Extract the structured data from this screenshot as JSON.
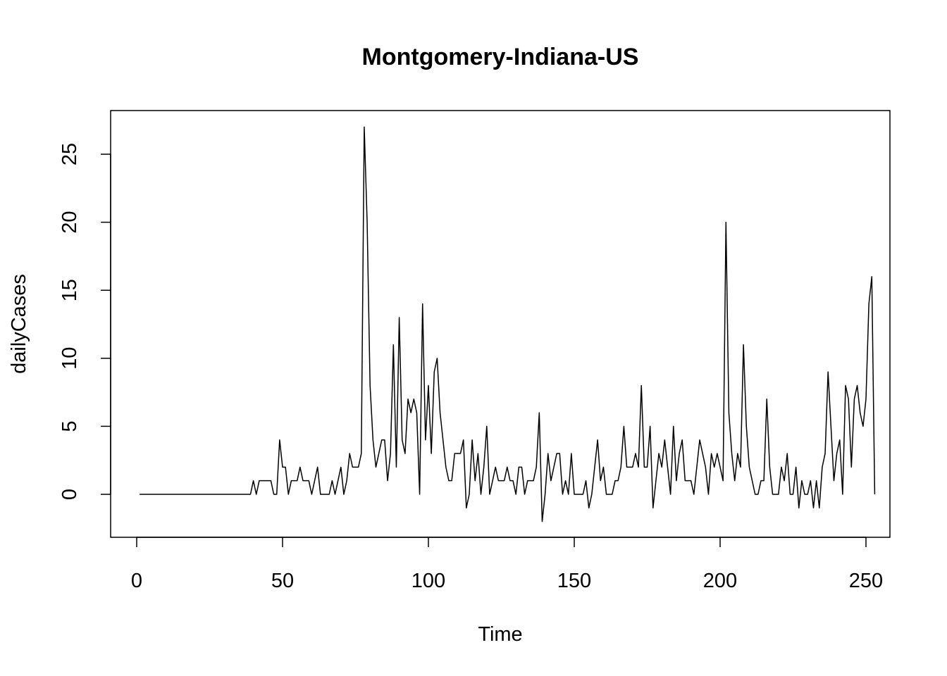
{
  "chart_data": {
    "type": "line",
    "title": "Montgomery-Indiana-US",
    "xlabel": "Time",
    "ylabel": "dailyCases",
    "xlim": [
      1,
      248
    ],
    "ylim": [
      -2,
      27
    ],
    "xticks": [
      0,
      50,
      100,
      150,
      200,
      250
    ],
    "yticks": [
      0,
      5,
      10,
      15,
      20,
      25
    ],
    "grid": false,
    "line_color": "#000000",
    "series": [
      {
        "x_start": 1,
        "values": [
          0,
          0,
          0,
          0,
          0,
          0,
          0,
          0,
          0,
          0,
          0,
          0,
          0,
          0,
          0,
          0,
          0,
          0,
          0,
          0,
          0,
          0,
          0,
          0,
          0,
          0,
          0,
          0,
          0,
          0,
          0,
          0,
          0,
          0,
          0,
          0,
          0,
          0,
          0,
          1,
          0,
          1,
          1,
          1,
          1,
          1,
          0,
          0,
          4,
          2,
          2,
          0,
          1,
          1,
          1,
          2,
          1,
          1,
          1,
          0,
          1,
          2,
          0,
          0,
          0,
          0,
          1,
          0,
          1,
          2,
          0,
          1,
          3,
          2,
          2,
          2,
          3,
          27,
          20,
          8,
          4,
          2,
          3,
          4,
          4,
          1,
          3,
          11,
          2,
          13,
          4,
          3,
          7,
          6,
          7,
          6,
          0,
          14,
          4,
          8,
          3,
          9,
          10,
          6,
          4,
          2,
          1,
          1,
          3,
          3,
          3,
          4,
          -1,
          0,
          4,
          1,
          3,
          0,
          2,
          5,
          0,
          1,
          2,
          1,
          1,
          1,
          2,
          1,
          1,
          0,
          2,
          2,
          0,
          1,
          1,
          1,
          2,
          6,
          -2,
          0,
          3,
          1,
          2,
          3,
          3,
          0,
          1,
          0,
          3,
          0,
          0,
          0,
          0,
          1,
          -1,
          0,
          2,
          4,
          1,
          2,
          0,
          0,
          0,
          1,
          1,
          2,
          5,
          2,
          2,
          2,
          3,
          2,
          8,
          2,
          2,
          5,
          -1,
          1,
          3,
          2,
          4,
          2,
          0,
          5,
          1,
          3,
          4,
          1,
          1,
          1,
          0,
          2,
          4,
          3,
          2,
          0,
          3,
          2,
          3,
          2,
          1,
          20,
          6,
          3,
          1,
          3,
          2,
          11,
          5,
          2,
          1,
          0,
          0,
          1,
          1,
          7,
          2,
          0,
          0,
          0,
          2,
          1,
          3,
          0,
          0,
          2,
          -1,
          1,
          0,
          0,
          1,
          -1,
          1,
          -1,
          2,
          3,
          9,
          5,
          1,
          3,
          4,
          0,
          8,
          7,
          2,
          7,
          8,
          6,
          5,
          7,
          14,
          16,
          0
        ]
      }
    ]
  }
}
